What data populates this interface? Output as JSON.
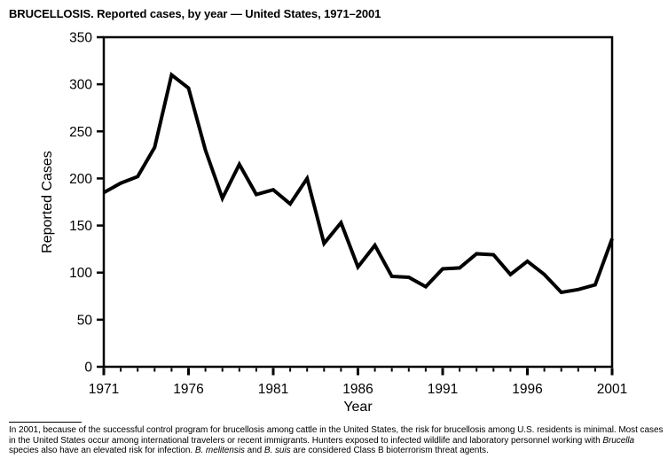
{
  "header": {
    "title": "BRUCELLOSIS. Reported cases, by year — United States, 1971–2001"
  },
  "chart_data": {
    "type": "line",
    "title": "BRUCELLOSIS. Reported cases, by year — United States, 1971–2001",
    "xlabel": "Year",
    "ylabel": "Reported Cases",
    "x": [
      1971,
      1972,
      1973,
      1974,
      1975,
      1976,
      1977,
      1978,
      1979,
      1980,
      1981,
      1982,
      1983,
      1984,
      1985,
      1986,
      1987,
      1988,
      1989,
      1990,
      1991,
      1992,
      1993,
      1994,
      1995,
      1996,
      1997,
      1998,
      1999,
      2000,
      2001
    ],
    "y": [
      185,
      195,
      202,
      233,
      310,
      296,
      230,
      179,
      215,
      183,
      188,
      173,
      200,
      131,
      153,
      106,
      129,
      96,
      95,
      85,
      104,
      105,
      120,
      119,
      98,
      112,
      98,
      79,
      82,
      87,
      136
    ],
    "ylim": [
      0,
      350
    ],
    "yticks": [
      0,
      50,
      100,
      150,
      200,
      250,
      300,
      350
    ],
    "xticks_major": [
      1971,
      1976,
      1981,
      1986,
      1991,
      1996,
      2001
    ],
    "xticks_minor_every": 1,
    "grid": false,
    "legend_position": "none",
    "line_color": "#000000",
    "axis_color": "#000000"
  },
  "footnote": {
    "segments": [
      {
        "text": "In 2001, because of the successful control program for brucellosis among cattle in the United States, the risk for brucellosis among U.S. residents is minimal. Most cases in the United States occur among international travelers or recent immigrants. Hunters exposed to infected wildlife and laboratory personnel working with ",
        "italic": false
      },
      {
        "text": "Brucella",
        "italic": true
      },
      {
        "text": " species also have an elevated risk for infection. ",
        "italic": false
      },
      {
        "text": "B. melitensis",
        "italic": true
      },
      {
        "text": " and ",
        "italic": false
      },
      {
        "text": "B. suis",
        "italic": true
      },
      {
        "text": " are considered Class B bioterrorism threat agents.",
        "italic": false
      }
    ]
  }
}
